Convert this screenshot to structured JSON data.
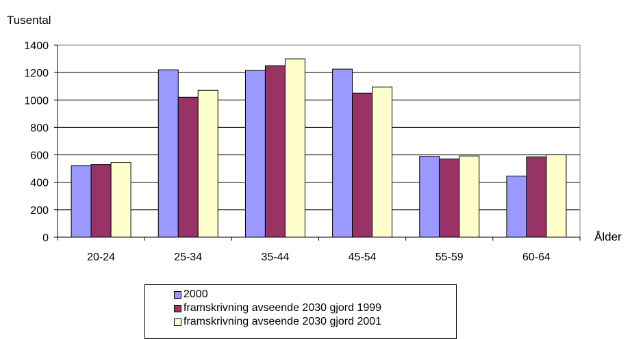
{
  "chart_data": {
    "type": "bar",
    "ylabel": "Tusental",
    "xlabel": "Ålder",
    "categories": [
      "20-24",
      "25-34",
      "35-44",
      "45-54",
      "55-59",
      "60-64"
    ],
    "ylim": [
      0,
      1400
    ],
    "yticks": [
      0,
      200,
      400,
      600,
      800,
      1000,
      1200,
      1400
    ],
    "grid": true,
    "legend_position": "bottom",
    "series": [
      {
        "name": "2000",
        "color": "#9999ff",
        "values": [
          520,
          1220,
          1215,
          1225,
          590,
          445
        ]
      },
      {
        "name": "framskrivning avseende 2030 gjord 1999",
        "color": "#993366",
        "values": [
          530,
          1020,
          1250,
          1050,
          570,
          585
        ]
      },
      {
        "name": "framskrivning avseende 2030 gjord 2001",
        "color": "#ffffcc",
        "values": [
          545,
          1070,
          1300,
          1095,
          592,
          600
        ]
      }
    ]
  }
}
